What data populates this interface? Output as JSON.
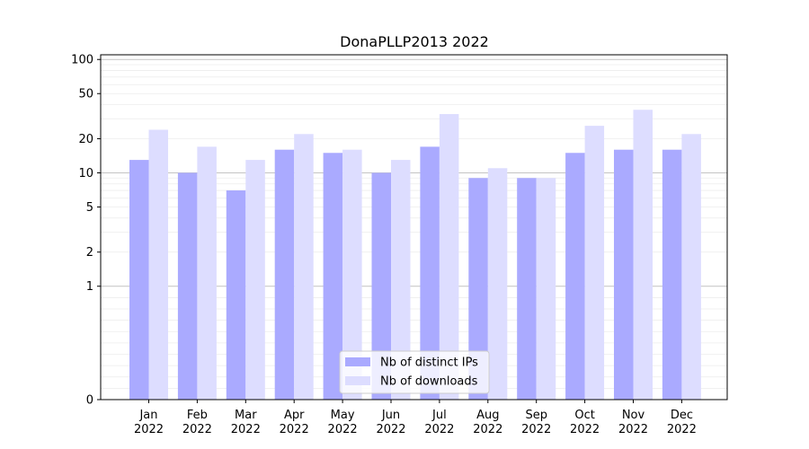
{
  "chart_data": {
    "type": "bar",
    "title": "DonaPLLP2013 2022",
    "xlabel": "",
    "ylabel": "",
    "yscale": "symlog",
    "ylim": [
      0,
      110
    ],
    "yticks": [
      0,
      1,
      2,
      5,
      10,
      20,
      50,
      100
    ],
    "ytick_labels": [
      "0",
      "1",
      "2",
      "5",
      "10",
      "20",
      "50",
      "100"
    ],
    "grid": true,
    "legend_position": "bottom-center",
    "categories": [
      {
        "month": "Jan",
        "year": "2022"
      },
      {
        "month": "Feb",
        "year": "2022"
      },
      {
        "month": "Mar",
        "year": "2022"
      },
      {
        "month": "Apr",
        "year": "2022"
      },
      {
        "month": "May",
        "year": "2022"
      },
      {
        "month": "Jun",
        "year": "2022"
      },
      {
        "month": "Jul",
        "year": "2022"
      },
      {
        "month": "Aug",
        "year": "2022"
      },
      {
        "month": "Sep",
        "year": "2022"
      },
      {
        "month": "Oct",
        "year": "2022"
      },
      {
        "month": "Nov",
        "year": "2022"
      },
      {
        "month": "Dec",
        "year": "2022"
      }
    ],
    "series": [
      {
        "name": "Nb of distinct IPs",
        "color": "#aaaaff",
        "values": [
          13,
          10,
          7,
          16,
          15,
          10,
          17,
          9,
          9,
          15,
          16,
          16
        ]
      },
      {
        "name": "Nb of downloads",
        "color": "#ddddff",
        "values": [
          24,
          17,
          13,
          22,
          16,
          13,
          33,
          11,
          9,
          26,
          36,
          22
        ]
      }
    ]
  }
}
